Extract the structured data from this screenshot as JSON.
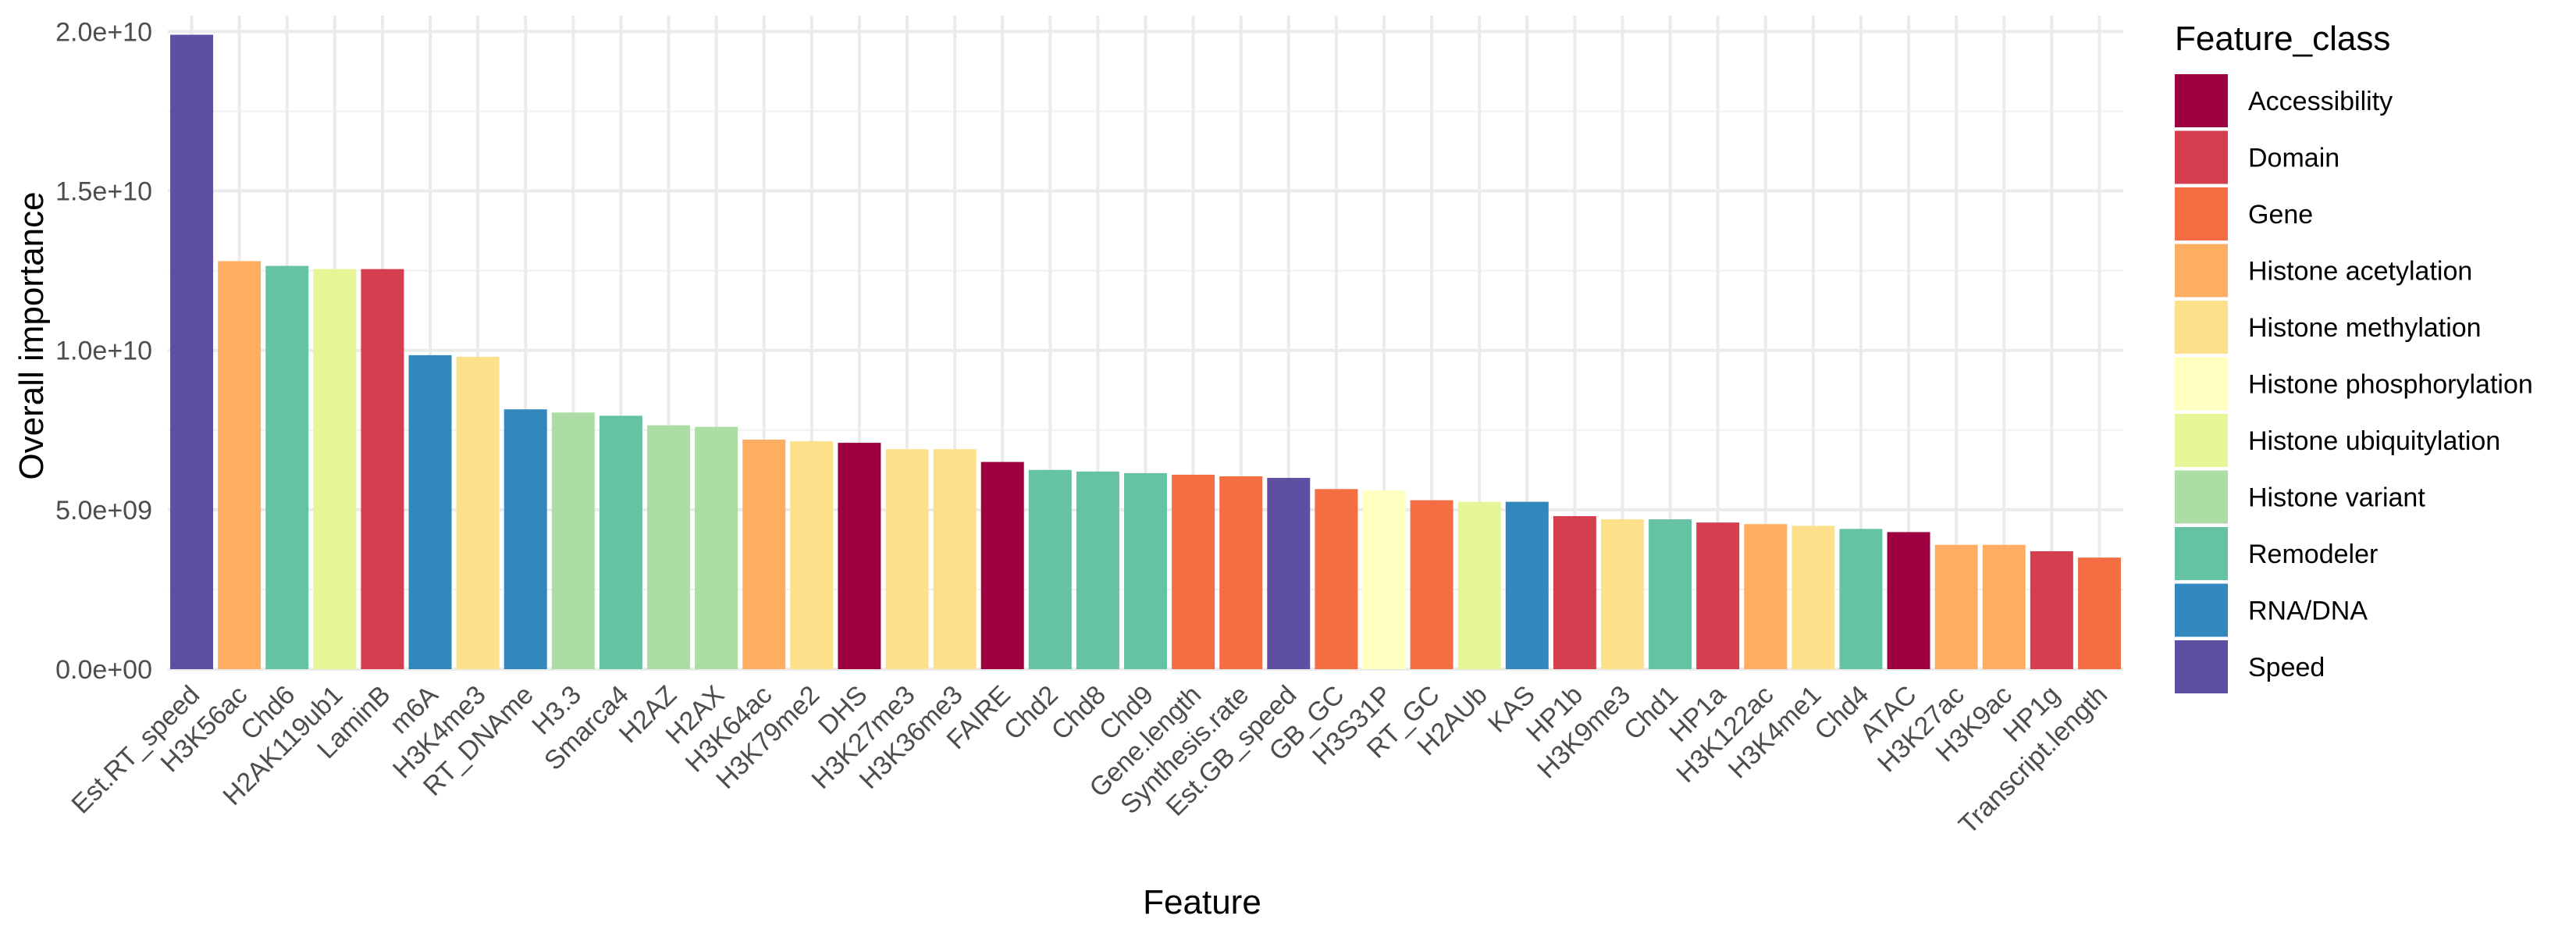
{
  "chart_data": {
    "type": "bar",
    "title": "",
    "xlabel": "Feature",
    "ylabel": "Overall importance",
    "ylim": [
      0,
      20500000000
    ],
    "yticks": [
      0,
      5000000000,
      10000000000,
      15000000000,
      20000000000
    ],
    "ytick_labels": [
      "0.0e+00",
      "5.0e+09",
      "1.0e+10",
      "1.5e+10",
      "2.0e+10"
    ],
    "grid": true,
    "legend": {
      "title": "Feature_class",
      "position": "right"
    },
    "classes": [
      {
        "name": "Accessibility",
        "color": "#9E0142"
      },
      {
        "name": "Domain",
        "color": "#D53E4F"
      },
      {
        "name": "Gene",
        "color": "#F46D43"
      },
      {
        "name": "Histone acetylation",
        "color": "#FDAE61"
      },
      {
        "name": "Histone methylation",
        "color": "#FEE08B"
      },
      {
        "name": "Histone phosphorylation",
        "color": "#FFFFBF"
      },
      {
        "name": "Histone ubiquitylation",
        "color": "#E6F598"
      },
      {
        "name": "Histone variant",
        "color": "#ABDDA4"
      },
      {
        "name": "Remodeler",
        "color": "#66C2A5"
      },
      {
        "name": "RNA/DNA",
        "color": "#3288BD"
      },
      {
        "name": "Speed",
        "color": "#5E4FA2"
      }
    ],
    "bars": [
      {
        "feature": "Est.RT_speed",
        "value": 19900000000,
        "class": "Speed"
      },
      {
        "feature": "H3K56ac",
        "value": 12800000000,
        "class": "Histone acetylation"
      },
      {
        "feature": "Chd6",
        "value": 12650000000,
        "class": "Remodeler"
      },
      {
        "feature": "H2AK119ub1",
        "value": 12550000000,
        "class": "Histone ubiquitylation"
      },
      {
        "feature": "LaminB",
        "value": 12550000000,
        "class": "Domain"
      },
      {
        "feature": "m6A",
        "value": 9850000000,
        "class": "RNA/DNA"
      },
      {
        "feature": "H3K4me3",
        "value": 9800000000,
        "class": "Histone methylation"
      },
      {
        "feature": "RT_DNAme",
        "value": 8150000000,
        "class": "RNA/DNA"
      },
      {
        "feature": "H3.3",
        "value": 8050000000,
        "class": "Histone variant"
      },
      {
        "feature": "Smarca4",
        "value": 7950000000,
        "class": "Remodeler"
      },
      {
        "feature": "H2AZ",
        "value": 7650000000,
        "class": "Histone variant"
      },
      {
        "feature": "H2AX",
        "value": 7600000000,
        "class": "Histone variant"
      },
      {
        "feature": "H3K64ac",
        "value": 7200000000,
        "class": "Histone acetylation"
      },
      {
        "feature": "H3K79me2",
        "value": 7150000000,
        "class": "Histone methylation"
      },
      {
        "feature": "DHS",
        "value": 7100000000,
        "class": "Accessibility"
      },
      {
        "feature": "H3K27me3",
        "value": 6900000000,
        "class": "Histone methylation"
      },
      {
        "feature": "H3K36me3",
        "value": 6900000000,
        "class": "Histone methylation"
      },
      {
        "feature": "FAIRE",
        "value": 6500000000,
        "class": "Accessibility"
      },
      {
        "feature": "Chd2",
        "value": 6250000000,
        "class": "Remodeler"
      },
      {
        "feature": "Chd8",
        "value": 6200000000,
        "class": "Remodeler"
      },
      {
        "feature": "Chd9",
        "value": 6150000000,
        "class": "Remodeler"
      },
      {
        "feature": "Gene.length",
        "value": 6100000000,
        "class": "Gene"
      },
      {
        "feature": "Synthesis.rate",
        "value": 6050000000,
        "class": "Gene"
      },
      {
        "feature": "Est.GB_speed",
        "value": 6000000000,
        "class": "Speed"
      },
      {
        "feature": "GB_GC",
        "value": 5650000000,
        "class": "Gene"
      },
      {
        "feature": "H3S31P",
        "value": 5600000000,
        "class": "Histone phosphorylation"
      },
      {
        "feature": "RT_GC",
        "value": 5300000000,
        "class": "Gene"
      },
      {
        "feature": "H2AUb",
        "value": 5250000000,
        "class": "Histone ubiquitylation"
      },
      {
        "feature": "KAS",
        "value": 5250000000,
        "class": "RNA/DNA"
      },
      {
        "feature": "HP1b",
        "value": 4800000000,
        "class": "Domain"
      },
      {
        "feature": "H3K9me3",
        "value": 4700000000,
        "class": "Histone methylation"
      },
      {
        "feature": "Chd1",
        "value": 4700000000,
        "class": "Remodeler"
      },
      {
        "feature": "HP1a",
        "value": 4600000000,
        "class": "Domain"
      },
      {
        "feature": "H3K122ac",
        "value": 4550000000,
        "class": "Histone acetylation"
      },
      {
        "feature": "H3K4me1",
        "value": 4500000000,
        "class": "Histone methylation"
      },
      {
        "feature": "Chd4",
        "value": 4400000000,
        "class": "Remodeler"
      },
      {
        "feature": "ATAC",
        "value": 4300000000,
        "class": "Accessibility"
      },
      {
        "feature": "H3K27ac",
        "value": 3900000000,
        "class": "Histone acetylation"
      },
      {
        "feature": "H3K9ac",
        "value": 3900000000,
        "class": "Histone acetylation"
      },
      {
        "feature": "HP1g",
        "value": 3700000000,
        "class": "Domain"
      },
      {
        "feature": "Transcript.length",
        "value": 3500000000,
        "class": "Gene"
      }
    ]
  }
}
